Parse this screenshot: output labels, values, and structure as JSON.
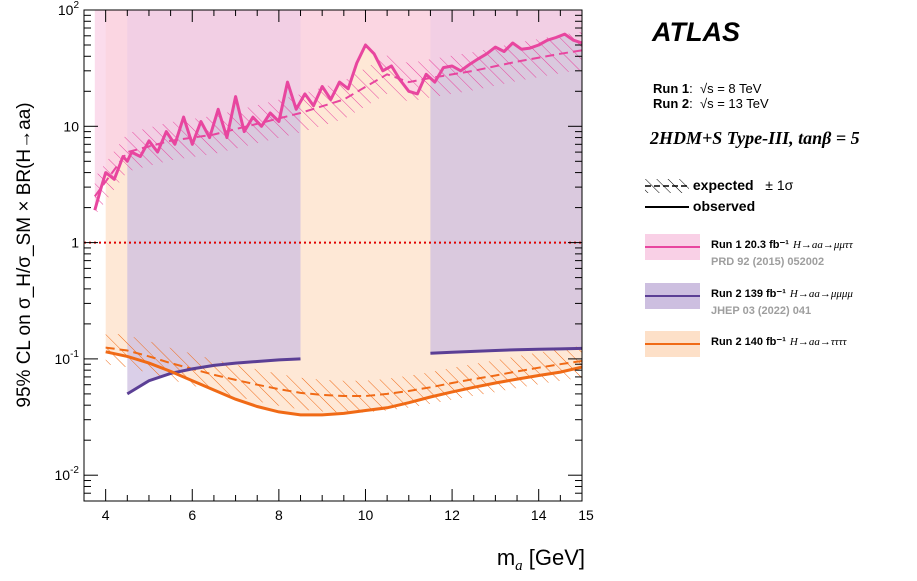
{
  "chart_data": {
    "type": "line",
    "title": "ATLAS",
    "xlabel": "m_a [GeV]",
    "ylabel": "95% CL on σ_H/σ_SM × BR(H→aa)",
    "ylog": true,
    "xlim": [
      3.5,
      15
    ],
    "ylim": [
      0.006,
      100
    ],
    "x_ticks": [
      "4",
      "6",
      "8",
      "10",
      "12",
      "14",
      "15"
    ],
    "y_ticks": [
      "10^-2",
      "10^-1",
      "1",
      "10",
      "10^2"
    ],
    "reference_line": {
      "y": 1,
      "style": "dotted",
      "color": "#e00000"
    },
    "series": [
      {
        "name": "Run 1 20.3 fb-1 H→aa→μμττ",
        "color": "#e8469f",
        "band_color": "#f9d0e6",
        "observed": {
          "x": [
            3.75,
            3.9,
            4.0,
            4.2,
            4.4,
            4.5,
            4.6,
            4.8,
            5.0,
            5.2,
            5.4,
            5.6,
            5.8,
            6.0,
            6.2,
            6.4,
            6.6,
            6.8,
            7.0,
            7.2,
            7.4,
            7.6,
            7.8,
            8.0,
            8.2,
            8.4,
            8.6,
            8.8,
            9.0,
            9.2,
            9.4,
            9.6,
            9.8,
            10.0,
            10.2,
            10.4,
            10.6,
            10.8,
            11.0,
            11.2,
            11.4,
            11.6,
            11.8,
            12.0,
            12.2,
            12.4,
            12.6,
            12.8,
            13.0,
            13.2,
            13.4,
            13.6,
            13.8,
            14.0,
            14.2,
            14.4,
            14.6,
            14.8,
            15.0
          ],
          "y": [
            1.9,
            3.0,
            4.0,
            3.5,
            5.5,
            5.0,
            6.0,
            5.5,
            7.5,
            6.0,
            9.0,
            7.0,
            12.0,
            7.0,
            11.0,
            8.0,
            14.0,
            8.0,
            18.0,
            9.0,
            12.0,
            10.0,
            13.0,
            11.0,
            24.0,
            14.0,
            19.0,
            15.0,
            22.0,
            17.0,
            24.0,
            21.0,
            35.0,
            50.0,
            42.0,
            30.0,
            33.0,
            25.0,
            20.0,
            19.0,
            28.0,
            24.0,
            32.0,
            33.0,
            30.0,
            34.0,
            38.0,
            42.0,
            48.0,
            44.0,
            52.0,
            46.0,
            47.0,
            50.0,
            55.0,
            58.0,
            62.0,
            55.0,
            52.0
          ]
        },
        "expected": {
          "x": [
            3.75,
            4.5,
            5.5,
            6.5,
            7.5,
            8.5,
            9.5,
            10.5,
            11.0,
            11.5,
            12.5,
            13.5,
            14.5,
            15.0
          ],
          "y": [
            2.5,
            6.0,
            7.5,
            8.5,
            10.5,
            13.0,
            17.0,
            28.0,
            24.0,
            26.0,
            30.0,
            36.0,
            42.0,
            45.0
          ]
        }
      },
      {
        "name": "Run 2 139 fb-1 H→aa→μμμμ",
        "color": "#5b3f95",
        "band_color": "#cdbfe0",
        "observed": {
          "x": [
            4.5,
            5.0,
            5.5,
            6.0,
            6.5,
            7.0,
            7.5,
            8.0,
            8.5,
            11.5,
            12.0,
            12.5,
            13.0,
            13.5,
            14.0,
            14.5,
            15.0
          ],
          "y": [
            0.05,
            0.065,
            0.075,
            0.082,
            0.088,
            0.092,
            0.095,
            0.098,
            0.1,
            0.112,
            0.114,
            0.116,
            0.118,
            0.12,
            0.121,
            0.122,
            0.123
          ]
        }
      },
      {
        "name": "Run 2 140 fb-1 H→aa→ττττ",
        "color": "#f06a16",
        "band_color": "#fde0c8",
        "observed": {
          "x": [
            4.0,
            4.5,
            5.0,
            5.5,
            6.0,
            6.5,
            7.0,
            7.5,
            8.0,
            8.5,
            9.0,
            9.5,
            10.0,
            10.5,
            11.0,
            11.5,
            12.0,
            12.5,
            13.0,
            13.5,
            14.0,
            14.5,
            15.0
          ],
          "y": [
            0.115,
            0.105,
            0.092,
            0.078,
            0.065,
            0.054,
            0.045,
            0.039,
            0.035,
            0.033,
            0.033,
            0.034,
            0.036,
            0.038,
            0.042,
            0.047,
            0.052,
            0.057,
            0.062,
            0.067,
            0.072,
            0.077,
            0.085
          ]
        },
        "expected": {
          "x": [
            4.0,
            4.5,
            5.0,
            5.5,
            6.0,
            6.5,
            7.0,
            7.5,
            8.0,
            8.5,
            9.0,
            9.5,
            10.0,
            10.5,
            11.0,
            11.5,
            12.0,
            12.5,
            13.0,
            13.5,
            14.0,
            14.5,
            15.0
          ],
          "y": [
            0.125,
            0.118,
            0.105,
            0.092,
            0.082,
            0.073,
            0.066,
            0.06,
            0.055,
            0.051,
            0.049,
            0.048,
            0.048,
            0.05,
            0.053,
            0.057,
            0.062,
            0.067,
            0.072,
            0.078,
            0.084,
            0.09,
            0.096
          ]
        }
      }
    ]
  },
  "legend": {
    "atlas_label": "ATLAS",
    "run1_label": "Run 1",
    "run1_energy": "√s = 8 TeV",
    "run2_label": "Run 2",
    "run2_energy": "√s = 13 TeV",
    "model": "2HDM+S Type-III, tanβ = 5",
    "expected_label": "expected",
    "sigma_label": "± 1σ",
    "observed_label": "observed",
    "entries": [
      {
        "label": "Run 1 20.3 fb⁻¹",
        "channel": "H→aa→μμττ",
        "ref": "PRD 92 (2015) 052002"
      },
      {
        "label": "Run 2 139 fb⁻¹",
        "channel": "H→aa→μμμμ",
        "ref": "JHEP 03 (2022) 041"
      },
      {
        "label": "Run 2 140 fb⁻¹",
        "channel": "H→aa→ττττ",
        "ref": ""
      }
    ]
  }
}
